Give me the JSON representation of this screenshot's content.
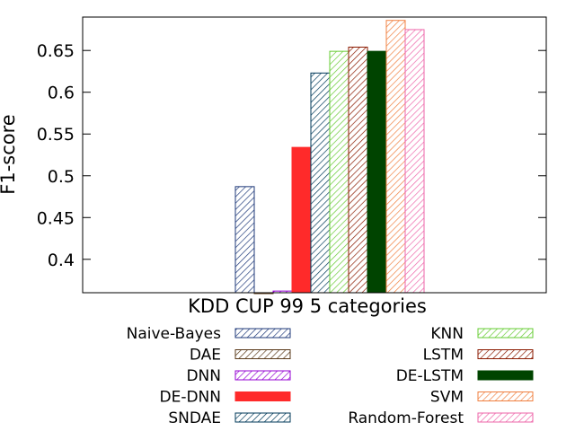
{
  "chart_data": {
    "type": "bar",
    "title": "",
    "xlabel": "KDD CUP 99 5 categories",
    "ylabel": "F1-score",
    "categories": [
      "KDD CUP 99 5 categories"
    ],
    "ylim": [
      0.36,
      0.69
    ],
    "yticks": [
      "0.4",
      "0.45",
      "0.5",
      "0.55",
      "0.6",
      "0.65"
    ],
    "grid": false,
    "legend_placement": "below",
    "series": [
      {
        "name": "Naive-Bayes",
        "values": [
          0.487
        ],
        "color": "#1f3a7a",
        "fill": "hatch"
      },
      {
        "name": "DAE",
        "values": [
          0.358
        ],
        "color": "#5a3a1a",
        "fill": "hatch"
      },
      {
        "name": "DNN",
        "values": [
          0.362
        ],
        "color": "#9400d3",
        "fill": "hatch"
      },
      {
        "name": "DE-DNN",
        "values": [
          0.534
        ],
        "color": "#ff2a2a",
        "fill": "solid"
      },
      {
        "name": "SNDAE",
        "values": [
          0.623
        ],
        "color": "#003a5a",
        "fill": "hatch"
      },
      {
        "name": "KNN",
        "values": [
          0.649
        ],
        "color": "#66cc33",
        "fill": "hatch"
      },
      {
        "name": "LSTM",
        "values": [
          0.654
        ],
        "color": "#8b1a00",
        "fill": "hatch"
      },
      {
        "name": "DE-LSTM",
        "values": [
          0.649
        ],
        "color": "#004400",
        "fill": "solid"
      },
      {
        "name": "SVM",
        "values": [
          0.686
        ],
        "color": "#f08040",
        "fill": "hatch"
      },
      {
        "name": "Random-Forest",
        "values": [
          0.675
        ],
        "color": "#ee66aa",
        "fill": "hatch"
      }
    ]
  }
}
